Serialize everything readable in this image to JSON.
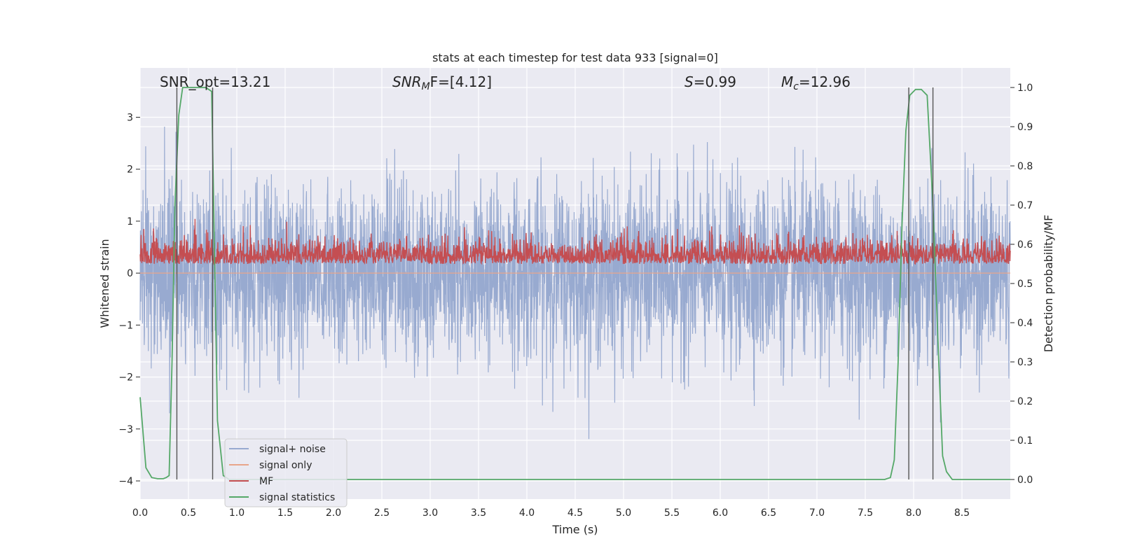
{
  "chart_data": {
    "type": "line",
    "title": "stats at each timestep for test data 933 [signal=0]",
    "xlabel": "Time (s)",
    "ylabel": "Whitened strain",
    "ylabel_right": "Detection probability/MF",
    "xlim": [
      0,
      9.0
    ],
    "ylim": [
      -4.35,
      3.95
    ],
    "ylim_right": [
      -0.05,
      1.05
    ],
    "x_ticks": [
      "0.0",
      "0.5",
      "1.0",
      "1.5",
      "2.0",
      "2.5",
      "3.0",
      "3.5",
      "4.0",
      "4.5",
      "5.0",
      "5.5",
      "6.0",
      "6.5",
      "7.0",
      "7.5",
      "8.0",
      "8.5"
    ],
    "y_ticks": [
      "3",
      "2",
      "1",
      "0",
      "−1",
      "−2",
      "−3",
      "−4"
    ],
    "y_right_ticks": [
      "1.0",
      "0.9",
      "0.8",
      "0.7",
      "0.6",
      "0.5",
      "0.4",
      "0.3",
      "0.2",
      "0.1",
      "0.0"
    ],
    "grid": true,
    "legend_position": "lower-left",
    "annotations": {
      "snr_opt": "SNR_opt=13.21",
      "snr_mf_label": "SNR",
      "snr_mf_sub": "M",
      "snr_mf_value": "F=[4.12]",
      "s_label": "S",
      "s_value": "=0.99",
      "mc_label": "M",
      "mc_sub": "c",
      "mc_value": "=12.96"
    },
    "series": [
      {
        "name": "signal+ noise",
        "color": "#98aad0",
        "axis": "left",
        "std": 0.85,
        "note": "dense noise trace"
      },
      {
        "name": "signal only",
        "color": "#e8a58a",
        "axis": "left",
        "values": [
          0
        ]
      },
      {
        "name": "MF",
        "color": "#c44e52",
        "axis": "right",
        "mean": 0.57,
        "note": "dense trace"
      },
      {
        "name": "signal statistics",
        "color": "#55a868",
        "axis": "right",
        "x": [
          0.0,
          0.06,
          0.12,
          0.18,
          0.24,
          0.27,
          0.3,
          0.33,
          0.36,
          0.4,
          0.44,
          0.5,
          0.56,
          0.62,
          0.68,
          0.74,
          0.8,
          0.86,
          0.92,
          1.0,
          1.5,
          2.0,
          3.0,
          4.0,
          5.0,
          6.0,
          7.0,
          7.7,
          7.76,
          7.8,
          7.84,
          7.88,
          7.92,
          7.96,
          8.02,
          8.08,
          8.14,
          8.2,
          8.26,
          8.3,
          8.34,
          8.4,
          8.5,
          8.7,
          9.0
        ],
        "y": [
          0.21,
          0.03,
          0.005,
          0.002,
          0.002,
          0.005,
          0.01,
          0.3,
          0.7,
          0.93,
          1.0,
          1.0,
          1.0,
          1.0,
          1.0,
          0.99,
          0.15,
          0.01,
          0.0,
          0.0,
          0.0,
          0.0,
          0.0,
          0.0,
          0.0,
          0.0,
          0.0,
          0.0,
          0.005,
          0.05,
          0.3,
          0.65,
          0.89,
          0.98,
          0.995,
          0.995,
          0.98,
          0.7,
          0.3,
          0.06,
          0.02,
          0.0,
          0.0,
          0.0,
          0.0
        ]
      }
    ],
    "vlines_x": [
      0.38,
      0.75,
      7.95,
      8.2
    ]
  }
}
